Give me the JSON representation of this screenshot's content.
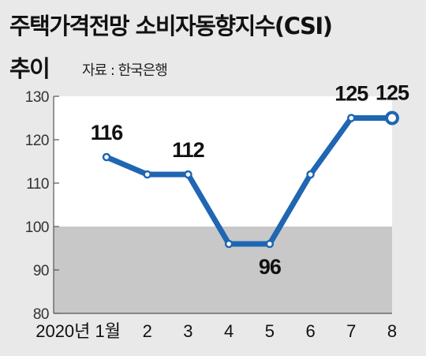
{
  "header": {
    "title_line1": "주택가격전망 소비자동향지수(CSI)",
    "title_line2": "추이",
    "source": "자료 : 한국은행"
  },
  "chart_data": {
    "type": "line",
    "title": "주택가격전망 소비자동향지수(CSI) 추이",
    "source": "자료 : 한국은행",
    "categories": [
      "2020년 1월",
      "2",
      "3",
      "4",
      "5",
      "6",
      "7",
      "8"
    ],
    "values": [
      116,
      112,
      112,
      96,
      96,
      112,
      125,
      125
    ],
    "data_labels": [
      "116",
      "",
      "112",
      "",
      "96",
      "",
      "125",
      "125"
    ],
    "ylim": [
      80,
      130
    ],
    "yticks": [
      "80",
      "90",
      "100",
      "110",
      "120",
      "130"
    ],
    "shaded_region": [
      80,
      100
    ],
    "colors": {
      "background": "#e9e9e9",
      "plot": "#ffffff",
      "shade": "#c8c8c9",
      "line": "#1f66b3",
      "axis": "#555555"
    }
  }
}
